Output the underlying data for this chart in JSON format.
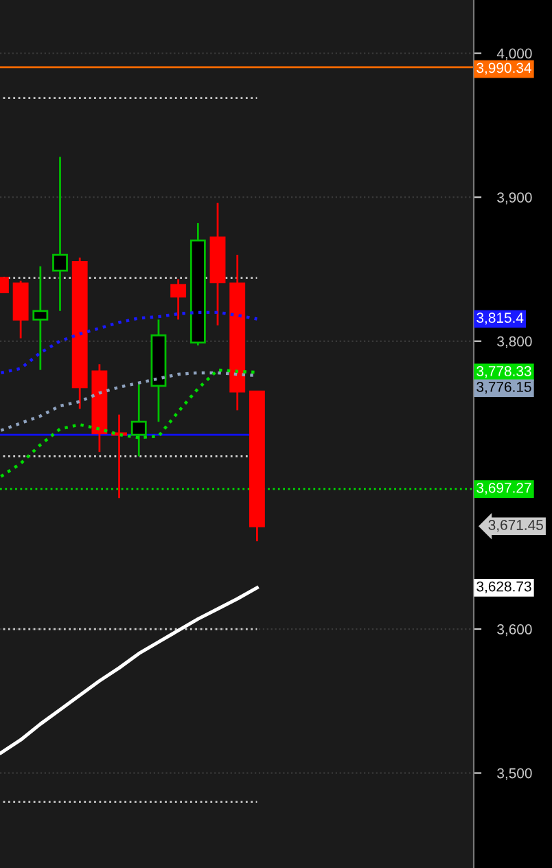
{
  "chart_data": {
    "type": "candlestick",
    "categories": [
      null,
      null,
      null,
      null,
      null,
      null,
      null,
      null,
      null,
      null,
      null,
      null,
      null,
      null
    ],
    "ohlc": [
      [
        3844,
        3844,
        3834,
        3834
      ],
      [
        3840,
        3842,
        3802,
        3815
      ],
      [
        3815,
        3852,
        3780,
        3821
      ],
      [
        3849,
        3928,
        3821,
        3860
      ],
      [
        3855,
        3858,
        3753,
        3768
      ],
      [
        3779,
        3784,
        3723,
        3736
      ],
      [
        3736,
        3749,
        3691,
        3735
      ],
      [
        3735,
        3770,
        3720,
        3744
      ],
      [
        3769,
        3815,
        3744,
        3804
      ],
      [
        3839,
        3843,
        3815,
        3831
      ],
      [
        3799,
        3882,
        3797,
        3870
      ],
      [
        3872,
        3896,
        3811,
        3841
      ],
      [
        3840,
        3860,
        3752,
        3765
      ],
      [
        3765,
        3765,
        3661,
        3671.45
      ]
    ],
    "colors": [
      "#ff0000",
      "#ff0000",
      "#00c000",
      "#00c000",
      "#ff0000",
      "#ff0000",
      "#ff0000",
      "#00c000",
      "#00c000",
      "#ff0000",
      "#00c000",
      "#ff0000",
      "#ff0000",
      "#ff0000"
    ],
    "series": [
      {
        "type": "line",
        "color": "#1a1aff",
        "line_style": "dotted",
        "values": [
          3778,
          3781,
          3792,
          3800,
          3805,
          3809,
          3813,
          3816,
          3817,
          3819,
          3820,
          3820,
          3818,
          3815.4
        ]
      },
      {
        "type": "line",
        "color": "#8fa3c0",
        "line_style": "dotted",
        "values": [
          3738,
          3743,
          3748,
          3755,
          3758,
          3764,
          3768,
          3771,
          3774,
          3777,
          3778,
          3778,
          3777,
          3776.15
        ]
      },
      {
        "type": "line",
        "color": "#00dd00",
        "line_style": "dotted",
        "values": [
          3706,
          3715,
          3728,
          3739,
          3742,
          3739,
          3735,
          3733,
          3734,
          3751,
          3767,
          3780,
          3779,
          3778.33
        ]
      },
      {
        "type": "line",
        "color": "#ffffff",
        "line_style": "solid",
        "values": [
          3514,
          3523,
          3534,
          3544,
          3554,
          3564,
          3573,
          3583,
          3591,
          3599,
          3607,
          3614,
          3621,
          3628.73
        ]
      }
    ],
    "ref_lines": [
      {
        "axis": "y",
        "value": 3990.34,
        "label": "3,990.34",
        "color": "#ff6a00",
        "line_style": "solid"
      },
      {
        "axis": "y",
        "value": 3697.27,
        "label": "3,697.27",
        "color": "#00dd00",
        "line_style": "dotted"
      },
      {
        "axis": "y",
        "value": 3735,
        "color": "#1010ff",
        "line_style": "solid"
      },
      {
        "axis": "y",
        "value": 3969,
        "color": "#cccccc",
        "line_style": "dotted"
      },
      {
        "axis": "y",
        "value": 3844,
        "color": "#cccccc",
        "line_style": "dotted"
      },
      {
        "axis": "y",
        "value": 3720,
        "color": "#cccccc",
        "line_style": "dotted"
      },
      {
        "axis": "y",
        "value": 3600,
        "color": "#cccccc",
        "line_style": "dotted"
      },
      {
        "axis": "y",
        "value": 3480,
        "color": "#cccccc",
        "line_style": "dotted"
      }
    ],
    "annotations": [
      "3,815.4",
      "3,776.15",
      "3,778.33",
      "3,628.73",
      "3,671.45"
    ],
    "ylim": [
      3434,
      4037
    ],
    "yticks": [
      {
        "value": 3500,
        "label": "3,500"
      },
      {
        "value": 3600,
        "label": "3,600"
      },
      {
        "value": 3800,
        "label": "3,800"
      },
      {
        "value": 3900,
        "label": "3,900"
      },
      {
        "value": 4000,
        "label": "4,000"
      }
    ],
    "grid": "y",
    "marker": "none"
  }
}
